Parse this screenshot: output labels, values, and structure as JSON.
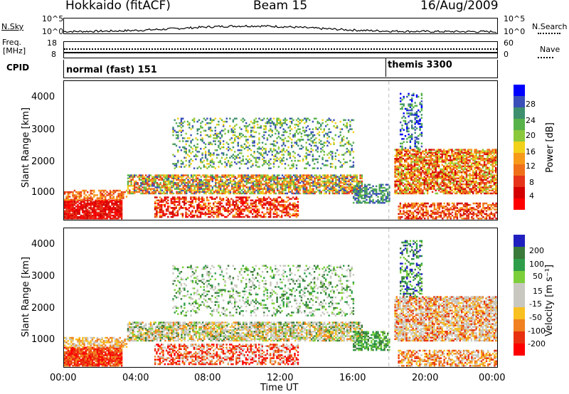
{
  "header": {
    "station": "Hokkaido (fitACF)",
    "beam": "Beam 15",
    "date": "16/Aug/2009"
  },
  "top_strip": {
    "nsky_label": "N.Sky",
    "nsky_left_ticks": [
      "10^5",
      "10^0"
    ],
    "nsky_right_ticks": [
      "10^5",
      "10^0"
    ],
    "nsearch_label": "N.Search",
    "freq_label": "Freq.",
    "freq_unit": "[MHz]",
    "freq_ticks": [
      "18",
      "8"
    ],
    "nave_label": "Nave",
    "nave_ticks": [
      "60",
      "0"
    ],
    "cpid_label": "CPID",
    "cpid_modes": [
      {
        "label": "normal (fast) 151",
        "start_hour": 0
      },
      {
        "label": "themis 3300",
        "start_hour": 18
      }
    ]
  },
  "chart_data": [
    {
      "type": "heatmap",
      "name": "Power",
      "ylabel": "Slant Range [km]",
      "ylim": [
        180,
        4600
      ],
      "yticks": [
        "1000",
        "2000",
        "3000",
        "4000"
      ],
      "xlim": [
        0,
        24
      ],
      "colorbar_label": "Power [dB]",
      "colorbar_ticks": [
        "4",
        "8",
        "12",
        "16",
        "20",
        "24",
        "28"
      ],
      "colorbar_colors": [
        "#0000ff",
        "#3a4fb8",
        "#3d8f6e",
        "#58b24a",
        "#8cc83c",
        "#f2d11a",
        "#f79a1a",
        "#f0701a",
        "#e5341a",
        "#d40000",
        "#ff0000"
      ],
      "mode_change_hour": 18
    },
    {
      "type": "heatmap",
      "name": "Velocity",
      "ylabel": "Slant Range [km]",
      "ylim": [
        180,
        4600
      ],
      "yticks": [
        "1000",
        "2000",
        "3000",
        "4000"
      ],
      "xlim": [
        0,
        24
      ],
      "colorbar_label": "Velocity [m s⁻¹]",
      "colorbar_ticks": [
        "200",
        "100",
        "50",
        "15",
        "-15",
        "-50",
        "-100",
        "-200"
      ],
      "colorbar_colors": [
        "#2020c0",
        "#3a7a3a",
        "#2e9e4a",
        "#7ccf3a",
        "#c8c8c0",
        "#c8c8c0",
        "#f8c020",
        "#f08020",
        "#e83010",
        "#ff0000"
      ],
      "mode_change_hour": 18
    }
  ],
  "x_axis": {
    "ticks": [
      "00:00",
      "04:00",
      "08:00",
      "12:00",
      "16:00",
      "20:00",
      "00:00"
    ],
    "label": "Time UT"
  }
}
